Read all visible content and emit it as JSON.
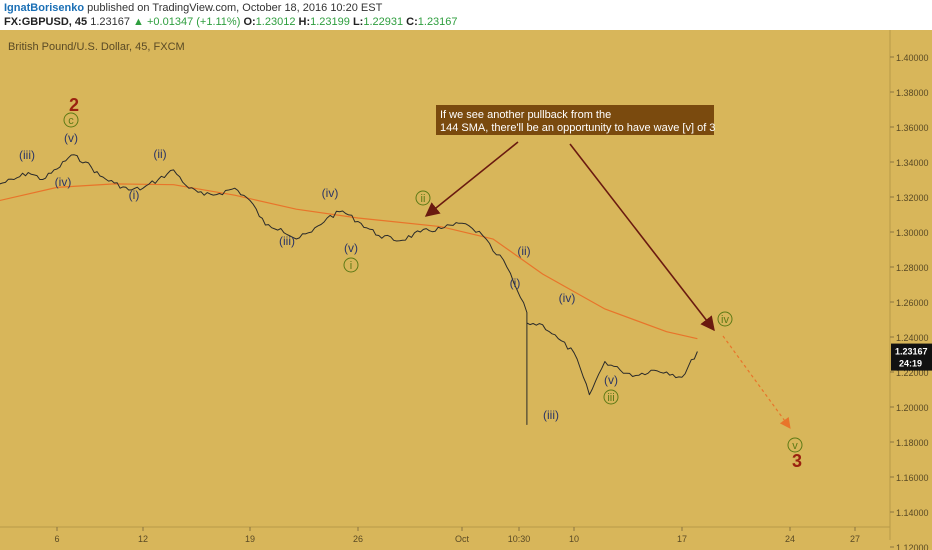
{
  "header": {
    "author": "IgnatBorisenko",
    "published_text": "published on TradingView.com, October 18, 2016 10:20 EST",
    "symbol": "FX:GBPUSD",
    "interval": "45",
    "last": "1.23167",
    "change": "+0.01347 (+1.11%)",
    "open_label": "O:",
    "open": "1.23012",
    "high_label": "H:",
    "high": "1.23199",
    "low_label": "L:",
    "low": "1.22931",
    "close_label": "C:",
    "close": "1.23167"
  },
  "chart_data": {
    "type": "line",
    "title": "British Pound/U.S. Dollar, 45, FXCM",
    "y_ticks": [
      "1.40000",
      "1.38000",
      "1.36000",
      "1.34000",
      "1.32000",
      "1.30000",
      "1.28000",
      "1.26000",
      "1.24000",
      "1.22000",
      "1.20000",
      "1.18000",
      "1.16000",
      "1.14000",
      "1.12000"
    ],
    "x_ticks": [
      "6",
      "12",
      "19",
      "26",
      "Oct",
      "10:30",
      "10",
      "17",
      "24",
      "27"
    ],
    "ylim": [
      1.12,
      1.4
    ],
    "last_price_tag": "1.23167",
    "countdown_tag": "24:19",
    "series": [
      {
        "values": [
          {
            "x": "Sep 2",
            "y": 1.3275
          },
          {
            "x": "Sep 3",
            "y": 1.33
          },
          {
            "x": "Sep 4",
            "y": 1.334
          },
          {
            "x": "Sep 5",
            "y": 1.33
          },
          {
            "x": "Sep 6",
            "y": 1.336
          },
          {
            "x": "Sep 7",
            "y": 1.344
          },
          {
            "x": "Sep 8",
            "y": 1.34
          },
          {
            "x": "Sep 9",
            "y": 1.332
          },
          {
            "x": "Sep 10",
            "y": 1.328
          },
          {
            "x": "Sep 11",
            "y": 1.324
          },
          {
            "x": "Sep 12",
            "y": 1.325
          },
          {
            "x": "Sep 13",
            "y": 1.33
          },
          {
            "x": "Sep 14",
            "y": 1.3355
          },
          {
            "x": "Sep 15",
            "y": 1.325
          },
          {
            "x": "Sep 16",
            "y": 1.321
          },
          {
            "x": "Sep 17",
            "y": 1.322
          },
          {
            "x": "Sep 18",
            "y": 1.325
          },
          {
            "x": "Sep 19",
            "y": 1.318
          },
          {
            "x": "Sep 20",
            "y": 1.304
          },
          {
            "x": "Sep 21",
            "y": 1.302
          },
          {
            "x": "Sep 22",
            "y": 1.296
          },
          {
            "x": "Sep 23",
            "y": 1.3
          },
          {
            "x": "Sep 24",
            "y": 1.308
          },
          {
            "x": "Sep 25",
            "y": 1.312
          },
          {
            "x": "Sep 26",
            "y": 1.306
          },
          {
            "x": "Sep 27",
            "y": 1.298
          },
          {
            "x": "Sep 28",
            "y": 1.295
          },
          {
            "x": "Sep 29",
            "y": 1.3
          },
          {
            "x": "Sep 30",
            "y": 1.302
          },
          {
            "x": "Oct 1",
            "y": 1.305
          },
          {
            "x": "Oct 2",
            "y": 1.302
          },
          {
            "x": "Oct 3",
            "y": 1.298
          },
          {
            "x": "Oct 4",
            "y": 1.289
          },
          {
            "x": "Oct 5",
            "y": 1.284
          },
          {
            "x": "Oct 6",
            "y": 1.271
          },
          {
            "x": "Oct 7",
            "y": 1.254
          },
          {
            "x": "Oct 7",
            "y": 1.19
          },
          {
            "x": "Oct 7",
            "y": 1.248
          },
          {
            "x": "Oct 8",
            "y": 1.247
          },
          {
            "x": "Oct 9",
            "y": 1.239
          },
          {
            "x": "Oct 10",
            "y": 1.231
          },
          {
            "x": "Oct 11",
            "y": 1.207
          },
          {
            "x": "Oct 12",
            "y": 1.226
          },
          {
            "x": "Oct 13",
            "y": 1.221
          },
          {
            "x": "Oct 14",
            "y": 1.218
          },
          {
            "x": "Oct 15",
            "y": 1.221
          },
          {
            "x": "Oct 16",
            "y": 1.22
          },
          {
            "x": "Oct 17",
            "y": 1.217
          },
          {
            "x": "Oct 18",
            "y": 1.2317
          }
        ]
      },
      {
        "values": [
          {
            "x": "Sep 2",
            "y": 1.318
          },
          {
            "x": "Sep 6",
            "y": 1.3255
          },
          {
            "x": "Sep 10",
            "y": 1.3275
          },
          {
            "x": "Sep 14",
            "y": 1.327
          },
          {
            "x": "Sep 18",
            "y": 1.321
          },
          {
            "x": "Sep 22",
            "y": 1.313
          },
          {
            "x": "Sep 26",
            "y": 1.308
          },
          {
            "x": "Sep 30",
            "y": 1.303
          },
          {
            "x": "Oct 4",
            "y": 1.296
          },
          {
            "x": "Oct 8",
            "y": 1.276
          },
          {
            "x": "Oct 12",
            "y": 1.256
          },
          {
            "x": "Oct 16",
            "y": 1.243
          },
          {
            "x": "Oct 18",
            "y": 1.239
          }
        ]
      }
    ],
    "wave_labels": [
      "2",
      "c",
      "(v)",
      "(iii)",
      "(iv)",
      "(i)",
      "(ii)",
      "(iii)",
      "(iv)",
      "(v)",
      "i",
      "ii",
      "(i)",
      "(ii)",
      "(iv)",
      "(iii)",
      "(v)",
      "iii",
      "iv",
      "v",
      "3"
    ],
    "annotation": "If we see another pullback from the 144 SMA, there'll be an opportunity to have wave [v] of 3"
  },
  "colors": {
    "background": "#d8b65a",
    "price_line": "#2a2a2a",
    "sma_line": "#e8742a",
    "wave_blue": "#2b3566",
    "wave_red": "#9a2210",
    "wave_green": "#5e7a16",
    "arrow": "#6a1a10",
    "annotation_box": "#7a4a0e"
  }
}
